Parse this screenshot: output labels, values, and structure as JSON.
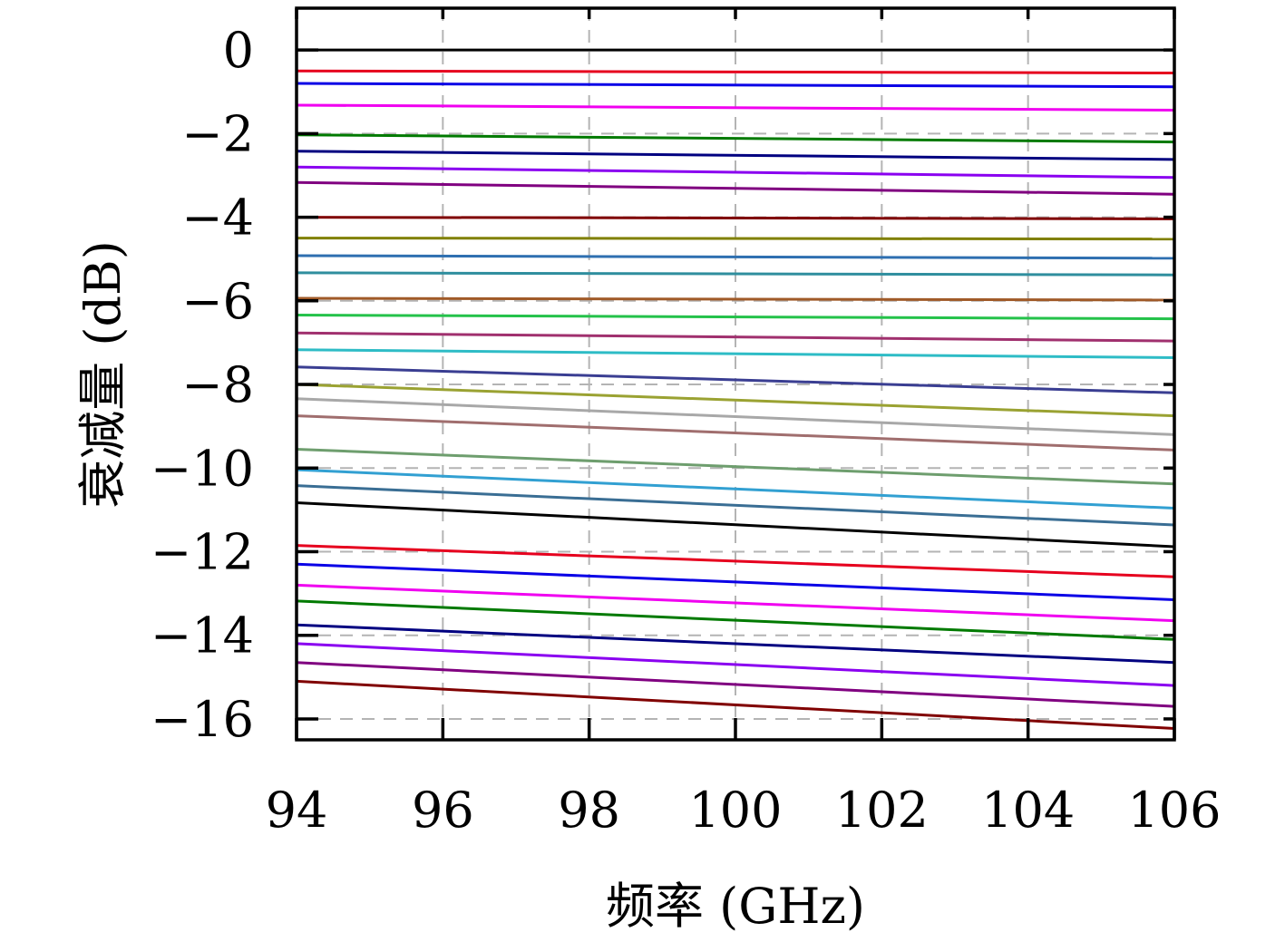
{
  "chart_data": {
    "type": "line",
    "title": "",
    "xlabel": "频率 (GHz)",
    "ylabel": "衰减量 (dB)",
    "xlim": [
      94,
      106
    ],
    "ylim": [
      -16.5,
      1.0
    ],
    "x_ticks": [
      94,
      96,
      98,
      100,
      102,
      104,
      106
    ],
    "y_ticks": [
      0,
      -2,
      -4,
      -6,
      -8,
      -10,
      -12,
      -14,
      -16
    ],
    "x_tick_labels": [
      "94",
      "96",
      "98",
      "100",
      "102",
      "104",
      "106"
    ],
    "y_tick_labels": [
      "0",
      "−2",
      "−4",
      "−6",
      "−8",
      "−10",
      "−12",
      "−14",
      "−16"
    ],
    "grid": true,
    "legend": "none",
    "series": [
      {
        "color": "#000000",
        "x": [
          94,
          106
        ],
        "y": [
          0.0,
          0.0
        ]
      },
      {
        "color": "#e6001e",
        "x": [
          94,
          106
        ],
        "y": [
          -0.5,
          -0.55
        ]
      },
      {
        "color": "#0a00e6",
        "x": [
          94,
          106
        ],
        "y": [
          -0.8,
          -0.88
        ]
      },
      {
        "color": "#f000f0",
        "x": [
          94,
          106
        ],
        "y": [
          -1.32,
          -1.44
        ]
      },
      {
        "color": "#007a00",
        "x": [
          94,
          106
        ],
        "y": [
          -2.03,
          -2.2
        ]
      },
      {
        "color": "#000080",
        "x": [
          94,
          106
        ],
        "y": [
          -2.42,
          -2.62
        ]
      },
      {
        "color": "#8a00f0",
        "x": [
          94,
          106
        ],
        "y": [
          -2.8,
          -3.05
        ]
      },
      {
        "color": "#800080",
        "x": [
          94,
          106
        ],
        "y": [
          -3.17,
          -3.45
        ]
      },
      {
        "color": "#800000",
        "x": [
          94,
          106
        ],
        "y": [
          -4.0,
          -4.04
        ]
      },
      {
        "color": "#808000",
        "x": [
          94,
          106
        ],
        "y": [
          -4.5,
          -4.52
        ]
      },
      {
        "color": "#2e6fb0",
        "x": [
          94,
          106
        ],
        "y": [
          -4.92,
          -4.98
        ]
      },
      {
        "color": "#2f8e9e",
        "x": [
          94,
          106
        ],
        "y": [
          -5.33,
          -5.38
        ]
      },
      {
        "color": "#a05a28",
        "x": [
          94,
          106
        ],
        "y": [
          -5.94,
          -5.98
        ]
      },
      {
        "color": "#24c24a",
        "x": [
          94,
          106
        ],
        "y": [
          -6.34,
          -6.43
        ]
      },
      {
        "color": "#a0306e",
        "x": [
          94,
          106
        ],
        "y": [
          -6.77,
          -6.96
        ]
      },
      {
        "color": "#2ebcc6",
        "x": [
          94,
          106
        ],
        "y": [
          -7.17,
          -7.36
        ]
      },
      {
        "color": "#3a3e92",
        "x": [
          94,
          106
        ],
        "y": [
          -7.58,
          -8.2
        ]
      },
      {
        "color": "#9aa232",
        "x": [
          94,
          106
        ],
        "y": [
          -8.0,
          -8.75
        ]
      },
      {
        "color": "#a8a8a8",
        "x": [
          94,
          106
        ],
        "y": [
          -8.34,
          -9.2
        ]
      },
      {
        "color": "#a06e6e",
        "x": [
          94,
          106
        ],
        "y": [
          -8.75,
          -9.57
        ]
      },
      {
        "color": "#6e9e6e",
        "x": [
          94,
          106
        ],
        "y": [
          -9.55,
          -10.38
        ]
      },
      {
        "color": "#32a0d2",
        "x": [
          94,
          106
        ],
        "y": [
          -10.04,
          -10.96
        ]
      },
      {
        "color": "#3a6e94",
        "x": [
          94,
          106
        ],
        "y": [
          -10.42,
          -11.36
        ]
      },
      {
        "color": "#000000",
        "x": [
          94,
          106
        ],
        "y": [
          -10.83,
          -11.88
        ]
      },
      {
        "color": "#e6001e",
        "x": [
          94,
          106
        ],
        "y": [
          -11.85,
          -12.6
        ]
      },
      {
        "color": "#0a00e6",
        "x": [
          94,
          106
        ],
        "y": [
          -12.3,
          -13.15
        ]
      },
      {
        "color": "#f000f0",
        "x": [
          94,
          106
        ],
        "y": [
          -12.8,
          -13.65
        ]
      },
      {
        "color": "#007a00",
        "x": [
          94,
          106
        ],
        "y": [
          -13.18,
          -14.1
        ]
      },
      {
        "color": "#000080",
        "x": [
          94,
          106
        ],
        "y": [
          -13.75,
          -14.65
        ]
      },
      {
        "color": "#8a00f0",
        "x": [
          94,
          106
        ],
        "y": [
          -14.2,
          -15.2
        ]
      },
      {
        "color": "#800080",
        "x": [
          94,
          106
        ],
        "y": [
          -14.65,
          -15.7
        ]
      },
      {
        "color": "#800000",
        "x": [
          94,
          106
        ],
        "y": [
          -15.1,
          -16.23
        ]
      }
    ]
  }
}
